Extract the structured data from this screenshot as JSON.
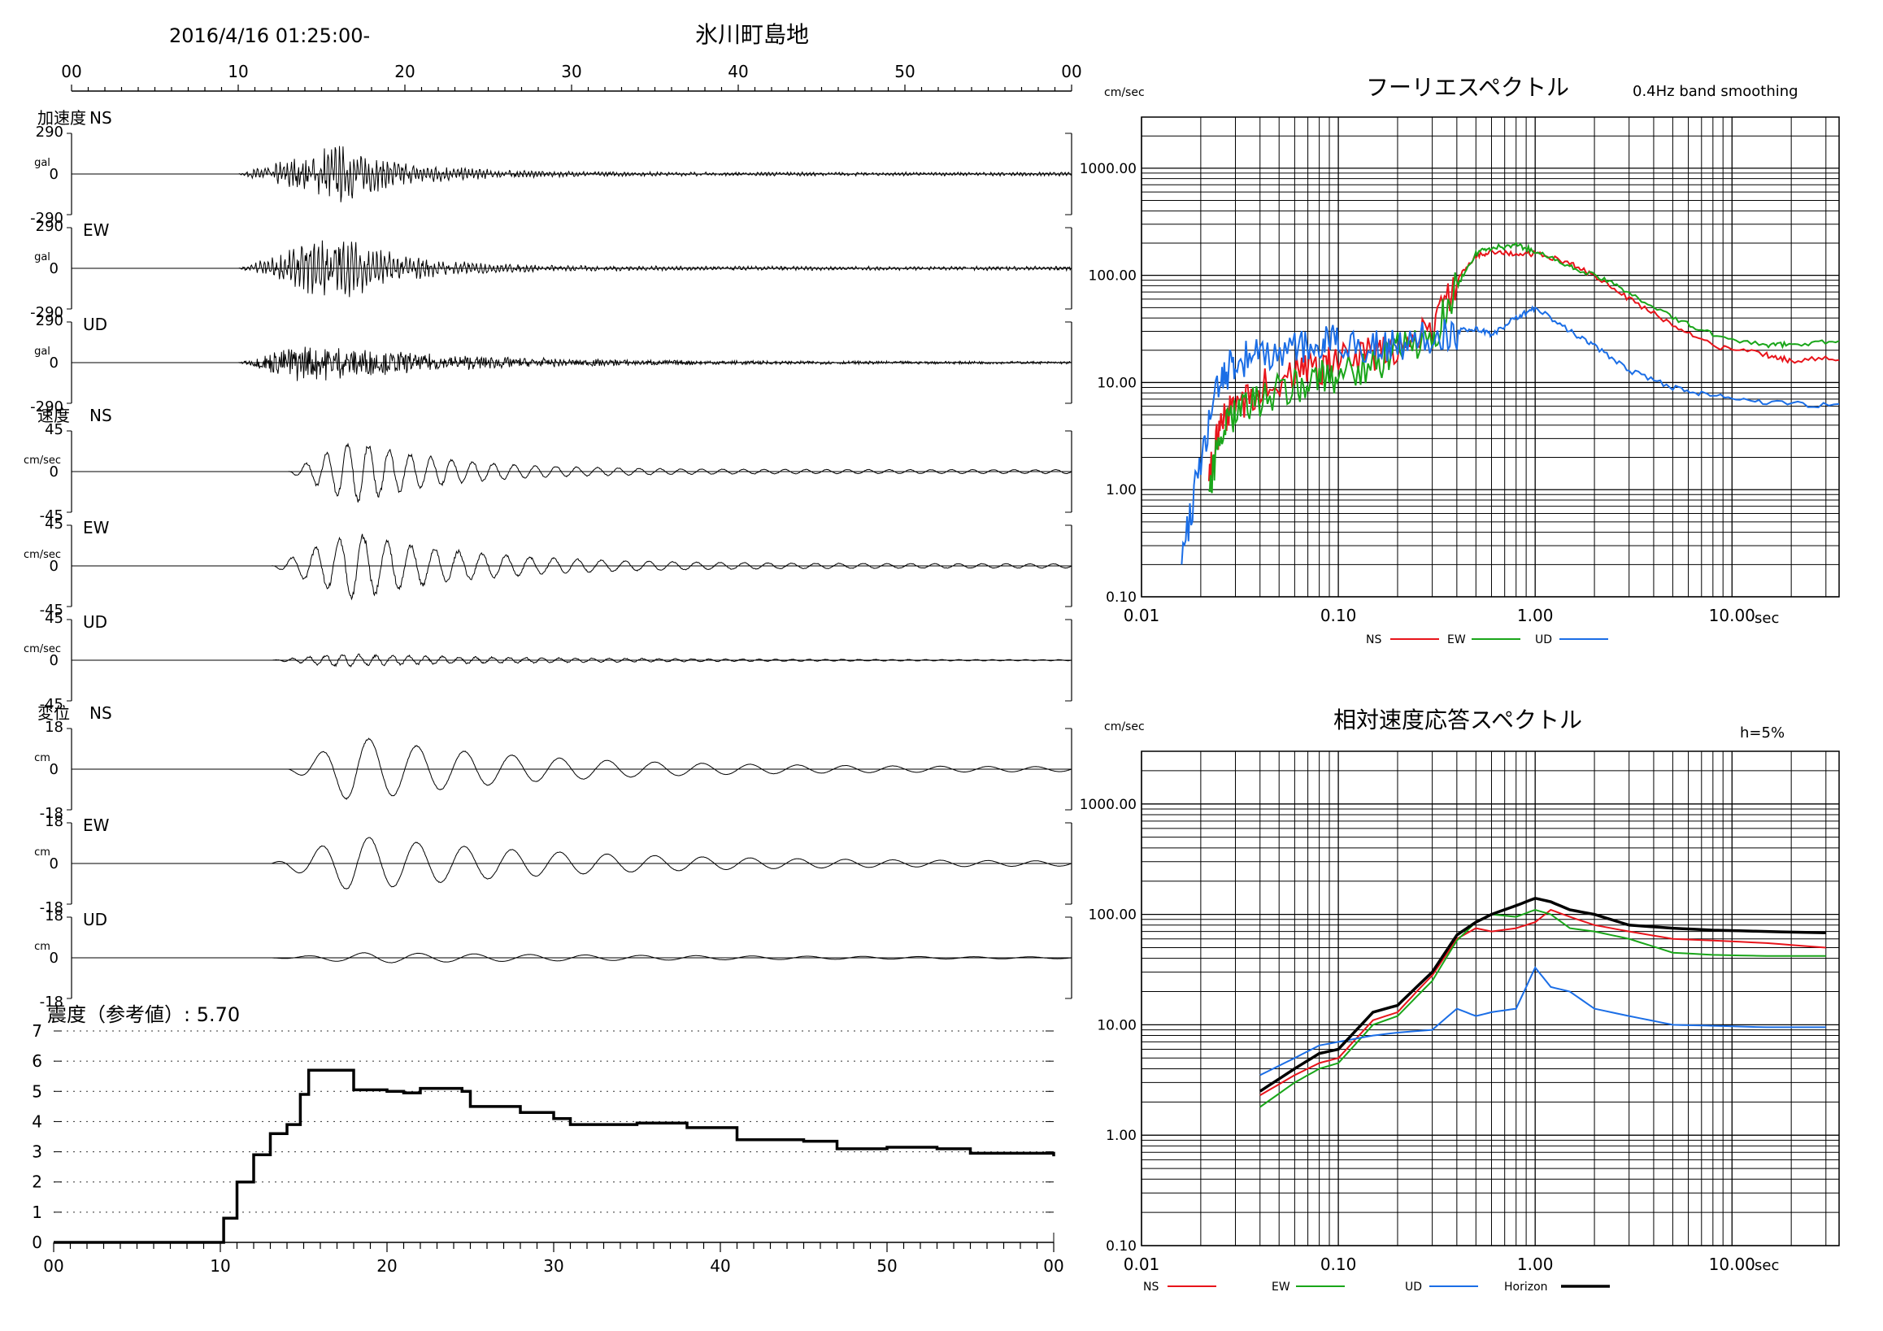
{
  "header": {
    "datetime": "2016/4/16 01:25:00-",
    "station": "氷川町島地"
  },
  "time_axis_labels": [
    "00",
    "10",
    "20",
    "30",
    "40",
    "50",
    "00"
  ],
  "seismograms": [
    {
      "group_label": "加速度",
      "comp": "NS",
      "top": "290",
      "zero": "0",
      "bottom": "-290",
      "unit": "gal"
    },
    {
      "group_label": "",
      "comp": "EW",
      "top": "290",
      "zero": "0",
      "bottom": "-290",
      "unit": "gal"
    },
    {
      "group_label": "",
      "comp": "UD",
      "top": "290",
      "zero": "0",
      "bottom": "-290",
      "unit": "gal"
    },
    {
      "group_label": "速度",
      "comp": "NS",
      "top": "45",
      "zero": "0",
      "bottom": "-45",
      "unit": "cm/sec"
    },
    {
      "group_label": "",
      "comp": "EW",
      "top": "45",
      "zero": "0",
      "bottom": "-45",
      "unit": "cm/sec"
    },
    {
      "group_label": "",
      "comp": "UD",
      "top": "45",
      "zero": "0",
      "bottom": "-45",
      "unit": "cm/sec"
    },
    {
      "group_label": "変位",
      "comp": "NS",
      "top": "18",
      "zero": "0",
      "bottom": "-18",
      "unit": "cm"
    },
    {
      "group_label": "",
      "comp": "EW",
      "top": "18",
      "zero": "0",
      "bottom": "-18",
      "unit": "cm"
    },
    {
      "group_label": "",
      "comp": "UD",
      "top": "18",
      "zero": "0",
      "bottom": "-18",
      "unit": "cm"
    }
  ],
  "intensity": {
    "title": "震度（参考値）: 5.70",
    "y_labels": [
      "0",
      "1",
      "2",
      "3",
      "4",
      "5",
      "6",
      "7"
    ],
    "x_labels": [
      "00",
      "10",
      "20",
      "30",
      "40",
      "50",
      "00"
    ]
  },
  "fourier": {
    "title": "フーリエスペクトル",
    "note": "0.4Hz band smoothing",
    "unit": "cm/sec",
    "y_labels": [
      "0.10",
      "1.00",
      "10.00",
      "100.00",
      "1000.00"
    ],
    "x_labels": [
      "0.01",
      "0.10",
      "1.00",
      "10.00"
    ],
    "x_unit": "sec",
    "legend": [
      {
        "name": "NS",
        "color": "#e8141b"
      },
      {
        "name": "EW",
        "color": "#1aa61a"
      },
      {
        "name": "UD",
        "color": "#1b6ee6"
      }
    ]
  },
  "response": {
    "title": "相対速度応答スペクトル",
    "note": "h=5%",
    "unit": "cm/sec",
    "y_labels": [
      "0.10",
      "1.00",
      "10.00",
      "100.00",
      "1000.00"
    ],
    "x_labels": [
      "0.01",
      "0.10",
      "1.00",
      "10.00"
    ],
    "x_unit": "sec",
    "legend": [
      {
        "name": "NS",
        "color": "#e8141b"
      },
      {
        "name": "EW",
        "color": "#1aa61a"
      },
      {
        "name": "UD",
        "color": "#1b6ee6"
      },
      {
        "name": "Horizon",
        "color": "#000000"
      }
    ]
  },
  "chart_data": [
    {
      "type": "line",
      "title": "震度（参考値）: 5.70",
      "x_unit": "seconds after 01:25:00",
      "xlim": [
        0,
        60
      ],
      "ylim": [
        0,
        7
      ],
      "series": [
        {
          "values_xy": [
            [
              0,
              0
            ],
            [
              10,
              0
            ],
            [
              10.2,
              0.8
            ],
            [
              11,
              2
            ],
            [
              12,
              2.9
            ],
            [
              13,
              3.6
            ],
            [
              14,
              3.9
            ],
            [
              14.8,
              4.9
            ],
            [
              15.3,
              5.7
            ],
            [
              17,
              5.7
            ],
            [
              18,
              5.05
            ],
            [
              20,
              5.0
            ],
            [
              21,
              4.95
            ],
            [
              22,
              5.1
            ],
            [
              24.5,
              5.0
            ],
            [
              25,
              4.5
            ],
            [
              28,
              4.3
            ],
            [
              30,
              4.1
            ],
            [
              31,
              3.9
            ],
            [
              35,
              3.95
            ],
            [
              38,
              3.8
            ],
            [
              41,
              3.4
            ],
            [
              45,
              3.35
            ],
            [
              47,
              3.1
            ],
            [
              50,
              3.15
            ],
            [
              53,
              3.1
            ],
            [
              55,
              2.95
            ],
            [
              60,
              2.85
            ]
          ]
        }
      ]
    },
    {
      "type": "line",
      "title": "フーリエスペクトル",
      "x_scale": "log",
      "y_scale": "log",
      "xlim": [
        0.01,
        35
      ],
      "ylim": [
        0.1,
        3000
      ],
      "x_unit": "sec",
      "y_unit": "cm/sec",
      "series": [
        {
          "name": "NS",
          "values_xy": [
            [
              0.022,
              1.2
            ],
            [
              0.025,
              4
            ],
            [
              0.03,
              6
            ],
            [
              0.04,
              9
            ],
            [
              0.06,
              12
            ],
            [
              0.08,
              14
            ],
            [
              0.1,
              16
            ],
            [
              0.15,
              18
            ],
            [
              0.2,
              21
            ],
            [
              0.3,
              30
            ],
            [
              0.4,
              90
            ],
            [
              0.5,
              150
            ],
            [
              0.6,
              170
            ],
            [
              0.8,
              155
            ],
            [
              1.0,
              160
            ],
            [
              1.5,
              130
            ],
            [
              2.0,
              100
            ],
            [
              3.0,
              60
            ],
            [
              5.0,
              35
            ],
            [
              8.0,
              22
            ],
            [
              15,
              18
            ],
            [
              20,
              16
            ],
            [
              35,
              17
            ]
          ]
        },
        {
          "name": "EW",
          "values_xy": [
            [
              0.022,
              1.0
            ],
            [
              0.025,
              3
            ],
            [
              0.03,
              5
            ],
            [
              0.04,
              7
            ],
            [
              0.06,
              9
            ],
            [
              0.08,
              11
            ],
            [
              0.1,
              12
            ],
            [
              0.15,
              14
            ],
            [
              0.2,
              20
            ],
            [
              0.3,
              25
            ],
            [
              0.4,
              80
            ],
            [
              0.5,
              160
            ],
            [
              0.6,
              180
            ],
            [
              0.8,
              190
            ],
            [
              1.0,
              170
            ],
            [
              1.5,
              120
            ],
            [
              2.0,
              100
            ],
            [
              3.0,
              70
            ],
            [
              5.0,
              40
            ],
            [
              8.0,
              28
            ],
            [
              15,
              22
            ],
            [
              20,
              23
            ],
            [
              35,
              24
            ]
          ]
        },
        {
          "name": "UD",
          "values_xy": [
            [
              0.016,
              0.2
            ],
            [
              0.02,
              2
            ],
            [
              0.025,
              10
            ],
            [
              0.03,
              16
            ],
            [
              0.04,
              18
            ],
            [
              0.06,
              20
            ],
            [
              0.08,
              22
            ],
            [
              0.1,
              24
            ],
            [
              0.15,
              22
            ],
            [
              0.2,
              22
            ],
            [
              0.3,
              28
            ],
            [
              0.4,
              30
            ],
            [
              0.5,
              32
            ],
            [
              0.6,
              28
            ],
            [
              0.8,
              40
            ],
            [
              1.0,
              50
            ],
            [
              1.5,
              30
            ],
            [
              2.0,
              22
            ],
            [
              3.0,
              13
            ],
            [
              5.0,
              9
            ],
            [
              8.0,
              7.5
            ],
            [
              15,
              6.5
            ],
            [
              35,
              6
            ]
          ]
        }
      ]
    },
    {
      "type": "line",
      "title": "相対速度応答スペクトル",
      "x_scale": "log",
      "y_scale": "log",
      "xlim": [
        0.01,
        35
      ],
      "ylim": [
        0.1,
        3000
      ],
      "x_unit": "sec",
      "y_unit": "cm/sec",
      "series": [
        {
          "name": "NS",
          "values_xy": [
            [
              0.04,
              2.3
            ],
            [
              0.06,
              3.5
            ],
            [
              0.08,
              4.5
            ],
            [
              0.1,
              5
            ],
            [
              0.15,
              11
            ],
            [
              0.2,
              13
            ],
            [
              0.25,
              20
            ],
            [
              0.3,
              28
            ],
            [
              0.4,
              60
            ],
            [
              0.5,
              75
            ],
            [
              0.6,
              70
            ],
            [
              0.8,
              75
            ],
            [
              1.0,
              85
            ],
            [
              1.2,
              110
            ],
            [
              1.5,
              95
            ],
            [
              2.0,
              80
            ],
            [
              3.0,
              70
            ],
            [
              5.0,
              60
            ],
            [
              8.0,
              58
            ],
            [
              15,
              55
            ],
            [
              30,
              50
            ]
          ]
        },
        {
          "name": "EW",
          "values_xy": [
            [
              0.04,
              1.8
            ],
            [
              0.06,
              3
            ],
            [
              0.08,
              4
            ],
            [
              0.1,
              4.5
            ],
            [
              0.15,
              10
            ],
            [
              0.2,
              12
            ],
            [
              0.25,
              18
            ],
            [
              0.3,
              25
            ],
            [
              0.4,
              58
            ],
            [
              0.5,
              85
            ],
            [
              0.6,
              100
            ],
            [
              0.8,
              95
            ],
            [
              1.0,
              110
            ],
            [
              1.2,
              100
            ],
            [
              1.5,
              75
            ],
            [
              2.0,
              70
            ],
            [
              3.0,
              60
            ],
            [
              5.0,
              45
            ],
            [
              8.0,
              43
            ],
            [
              15,
              42
            ],
            [
              30,
              42
            ]
          ]
        },
        {
          "name": "UD",
          "values_xy": [
            [
              0.04,
              3.5
            ],
            [
              0.06,
              5
            ],
            [
              0.08,
              6.5
            ],
            [
              0.1,
              7
            ],
            [
              0.15,
              8
            ],
            [
              0.2,
              8.5
            ],
            [
              0.3,
              9
            ],
            [
              0.4,
              14
            ],
            [
              0.5,
              12
            ],
            [
              0.6,
              13
            ],
            [
              0.8,
              14
            ],
            [
              1.0,
              33
            ],
            [
              1.2,
              22
            ],
            [
              1.5,
              20
            ],
            [
              2.0,
              14
            ],
            [
              3.0,
              12
            ],
            [
              5.0,
              10
            ],
            [
              8.0,
              9.8
            ],
            [
              15,
              9.5
            ],
            [
              30,
              9.5
            ]
          ]
        },
        {
          "name": "Horizon",
          "values_xy": [
            [
              0.04,
              2.5
            ],
            [
              0.06,
              4
            ],
            [
              0.08,
              5.5
            ],
            [
              0.1,
              6
            ],
            [
              0.15,
              13
            ],
            [
              0.2,
              15
            ],
            [
              0.25,
              22
            ],
            [
              0.3,
              30
            ],
            [
              0.4,
              65
            ],
            [
              0.5,
              85
            ],
            [
              0.6,
              100
            ],
            [
              0.8,
              120
            ],
            [
              1.0,
              140
            ],
            [
              1.2,
              130
            ],
            [
              1.5,
              110
            ],
            [
              2.0,
              100
            ],
            [
              3.0,
              80
            ],
            [
              5.0,
              75
            ],
            [
              8.0,
              72
            ],
            [
              15,
              70
            ],
            [
              30,
              68
            ]
          ]
        }
      ]
    }
  ]
}
